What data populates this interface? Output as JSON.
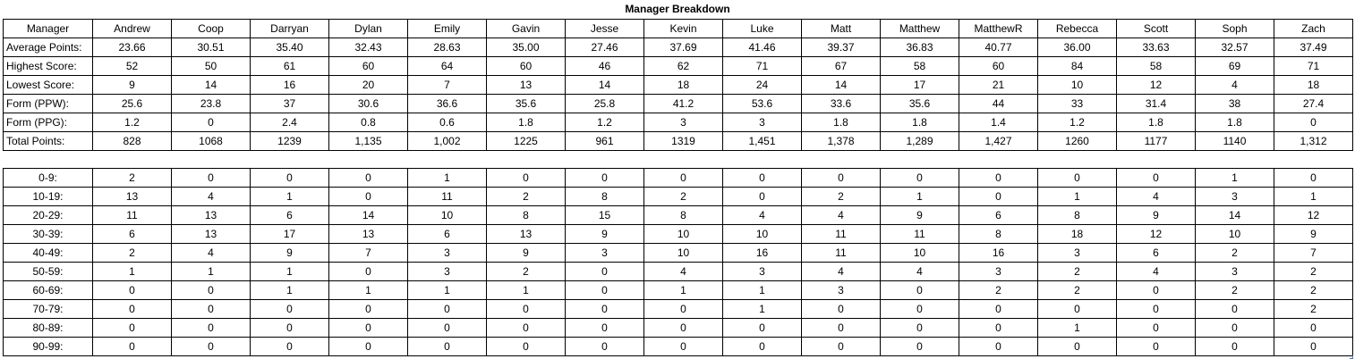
{
  "title": "Manager Breakdown",
  "stats": {
    "header_label": "Manager",
    "managers": [
      "Andrew",
      "Coop",
      "Darryan",
      "Dylan",
      "Emily",
      "Gavin",
      "Jesse",
      "Kevin",
      "Luke",
      "Matt",
      "Matthew",
      "MatthewR",
      "Rebecca",
      "Scott",
      "Soph",
      "Zach"
    ],
    "rows": [
      {
        "label": "Average Points:",
        "values": [
          "23.66",
          "30.51",
          "35.40",
          "32.43",
          "28.63",
          "35.00",
          "27.46",
          "37.69",
          "41.46",
          "39.37",
          "36.83",
          "40.77",
          "36.00",
          "33.63",
          "32.57",
          "37.49"
        ]
      },
      {
        "label": "Highest Score:",
        "values": [
          "52",
          "50",
          "61",
          "60",
          "64",
          "60",
          "46",
          "62",
          "71",
          "67",
          "58",
          "60",
          "84",
          "58",
          "69",
          "71"
        ]
      },
      {
        "label": "Lowest Score:",
        "values": [
          "9",
          "14",
          "16",
          "20",
          "7",
          "13",
          "14",
          "18",
          "24",
          "14",
          "17",
          "21",
          "10",
          "12",
          "4",
          "18"
        ]
      },
      {
        "label": "Form (PPW):",
        "values": [
          "25.6",
          "23.8",
          "37",
          "30.6",
          "36.6",
          "35.6",
          "25.8",
          "41.2",
          "53.6",
          "33.6",
          "35.6",
          "44",
          "33",
          "31.4",
          "38",
          "27.4"
        ]
      },
      {
        "label": "Form (PPG):",
        "values": [
          "1.2",
          "0",
          "2.4",
          "0.8",
          "0.6",
          "1.8",
          "1.2",
          "3",
          "3",
          "1.8",
          "1.8",
          "1.4",
          "1.2",
          "1.8",
          "1.8",
          "0"
        ]
      },
      {
        "label": "Total Points:",
        "values": [
          "828",
          "1068",
          "1239",
          "1,135",
          "1,002",
          "1225",
          "961",
          "1319",
          "1,451",
          "1,378",
          "1,289",
          "1,427",
          "1260",
          "1177",
          "1140",
          "1,312"
        ]
      }
    ]
  },
  "distribution": {
    "rows": [
      {
        "label": "0-9:",
        "values": [
          "2",
          "0",
          "0",
          "0",
          "1",
          "0",
          "0",
          "0",
          "0",
          "0",
          "0",
          "0",
          "0",
          "0",
          "1",
          "0"
        ]
      },
      {
        "label": "10-19:",
        "values": [
          "13",
          "4",
          "1",
          "0",
          "11",
          "2",
          "8",
          "2",
          "0",
          "2",
          "1",
          "0",
          "1",
          "4",
          "3",
          "1"
        ]
      },
      {
        "label": "20-29:",
        "values": [
          "11",
          "13",
          "6",
          "14",
          "10",
          "8",
          "15",
          "8",
          "4",
          "4",
          "9",
          "6",
          "8",
          "9",
          "14",
          "12"
        ]
      },
      {
        "label": "30-39:",
        "values": [
          "6",
          "13",
          "17",
          "13",
          "6",
          "13",
          "9",
          "10",
          "10",
          "11",
          "11",
          "8",
          "18",
          "12",
          "10",
          "9"
        ]
      },
      {
        "label": "40-49:",
        "values": [
          "2",
          "4",
          "9",
          "7",
          "3",
          "9",
          "3",
          "10",
          "16",
          "11",
          "10",
          "16",
          "3",
          "6",
          "2",
          "7"
        ]
      },
      {
        "label": "50-59:",
        "values": [
          "1",
          "1",
          "1",
          "0",
          "3",
          "2",
          "0",
          "4",
          "3",
          "4",
          "4",
          "3",
          "2",
          "4",
          "3",
          "2"
        ]
      },
      {
        "label": "60-69:",
        "values": [
          "0",
          "0",
          "1",
          "1",
          "1",
          "1",
          "0",
          "1",
          "1",
          "3",
          "0",
          "2",
          "2",
          "0",
          "2",
          "2"
        ]
      },
      {
        "label": "70-79:",
        "values": [
          "0",
          "0",
          "0",
          "0",
          "0",
          "0",
          "0",
          "0",
          "1",
          "0",
          "0",
          "0",
          "0",
          "0",
          "0",
          "2"
        ]
      },
      {
        "label": "80-89:",
        "values": [
          "0",
          "0",
          "0",
          "0",
          "0",
          "0",
          "0",
          "0",
          "0",
          "0",
          "0",
          "0",
          "1",
          "0",
          "0",
          "0"
        ]
      },
      {
        "label": "90-99:",
        "values": [
          "0",
          "0",
          "0",
          "0",
          "0",
          "0",
          "0",
          "0",
          "0",
          "0",
          "0",
          "0",
          "0",
          "0",
          "0",
          "0"
        ]
      }
    ]
  }
}
